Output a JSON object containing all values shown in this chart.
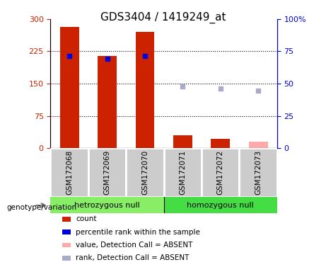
{
  "title": "GDS3404 / 1419249_at",
  "samples": [
    "GSM172068",
    "GSM172069",
    "GSM172070",
    "GSM172071",
    "GSM172072",
    "GSM172073"
  ],
  "groups": [
    "hetrozygous null",
    "homozygous null"
  ],
  "bar_values": [
    282,
    215,
    270,
    30,
    22,
    null
  ],
  "bar_absent_value": 15,
  "bar_color_present": "#cc2200",
  "bar_color_absent": "#ffaaaa",
  "absent_mask": [
    false,
    false,
    false,
    false,
    false,
    true
  ],
  "rank_values": [
    215,
    207,
    215,
    null,
    null,
    null
  ],
  "rank_absent_values": [
    null,
    null,
    null,
    144,
    138,
    133
  ],
  "rank_color_present": "#0000dd",
  "rank_color_absent": "#aaaacc",
  "ylim_left": [
    0,
    300
  ],
  "ylim_right": [
    0,
    100
  ],
  "yticks_left": [
    0,
    75,
    150,
    225,
    300
  ],
  "yticks_right": [
    0,
    25,
    50,
    75,
    100
  ],
  "hlines": [
    75,
    150,
    225
  ],
  "group_color_1": "#88ee66",
  "group_color_2": "#44dd44",
  "label_bg": "#cccccc",
  "legend_items": [
    {
      "label": "count",
      "color": "#cc2200"
    },
    {
      "label": "percentile rank within the sample",
      "color": "#0000dd"
    },
    {
      "label": "value, Detection Call = ABSENT",
      "color": "#ffaaaa"
    },
    {
      "label": "rank, Detection Call = ABSENT",
      "color": "#aaaacc"
    }
  ],
  "genotype_label": "genotype/variation",
  "title_fontsize": 11,
  "tick_fontsize": 8,
  "label_fontsize": 7.5
}
